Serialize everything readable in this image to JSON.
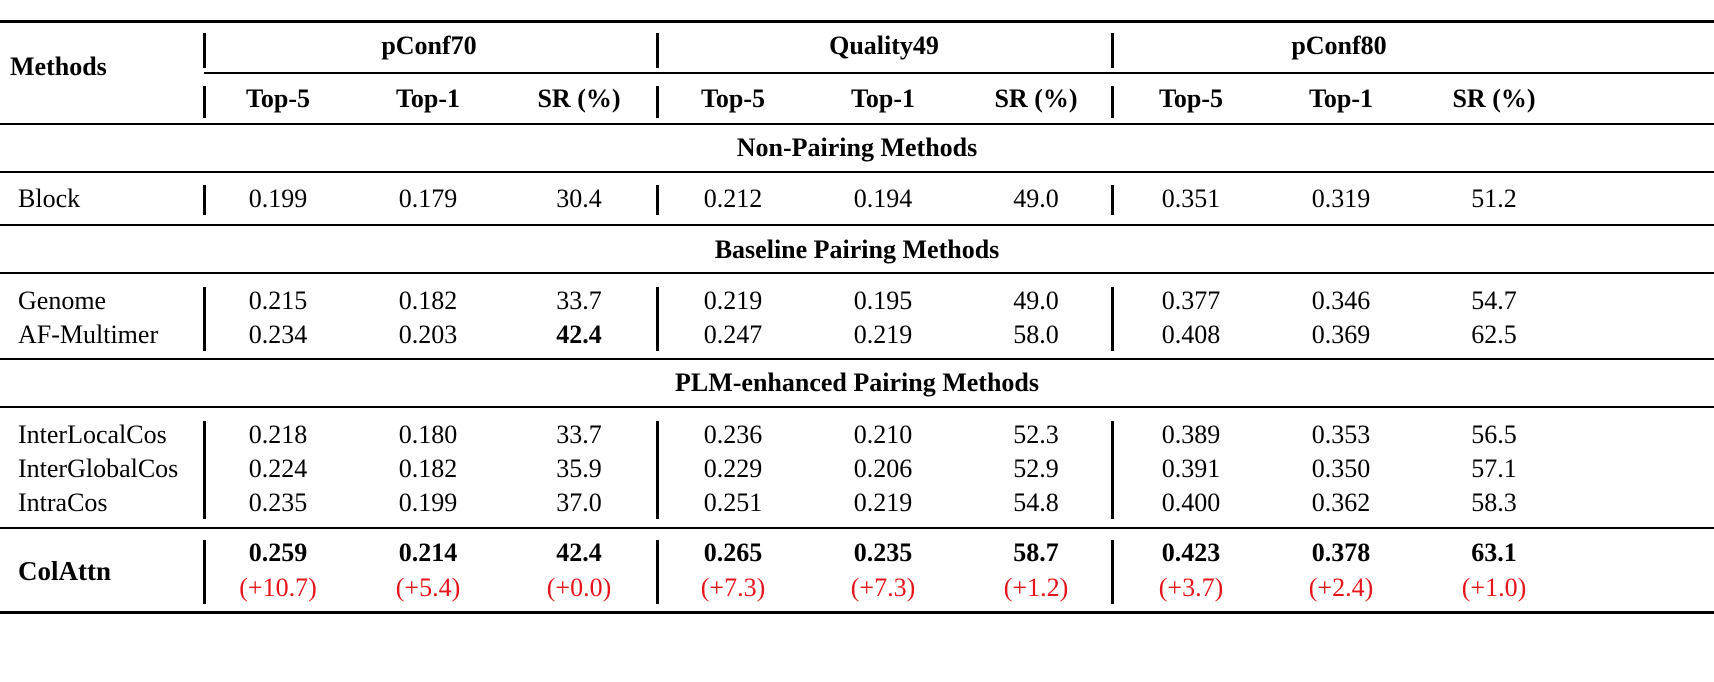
{
  "header": {
    "methods_label": "Methods",
    "datasets": [
      "pConf70",
      "Quality49",
      "pConf80"
    ],
    "metrics": [
      "Top-5",
      "Top-1",
      "SR (%)"
    ]
  },
  "sections": [
    {
      "title": "Non-Pairing Methods",
      "rows": [
        {
          "method": "Block",
          "values": [
            "0.199",
            "0.179",
            "30.4",
            "0.212",
            "0.194",
            "49.0",
            "0.351",
            "0.319",
            "51.2"
          ]
        }
      ]
    },
    {
      "title": "Baseline Pairing Methods",
      "rows": [
        {
          "method": "Genome",
          "values": [
            "0.215",
            "0.182",
            "33.7",
            "0.219",
            "0.195",
            "49.0",
            "0.377",
            "0.346",
            "54.7"
          ]
        },
        {
          "method": "AF-Multimer",
          "values": [
            "0.234",
            "0.203",
            "42.4",
            "0.247",
            "0.219",
            "58.0",
            "0.408",
            "0.369",
            "62.5"
          ]
        }
      ]
    },
    {
      "title": "PLM-enhanced Pairing Methods",
      "rows": [
        {
          "method": "InterLocalCos",
          "values": [
            "0.218",
            "0.180",
            "33.7",
            "0.236",
            "0.210",
            "52.3",
            "0.389",
            "0.353",
            "56.5"
          ]
        },
        {
          "method": "InterGlobalCos",
          "values": [
            "0.224",
            "0.182",
            "35.9",
            "0.229",
            "0.206",
            "52.9",
            "0.391",
            "0.350",
            "57.1"
          ]
        },
        {
          "method": "IntraCos",
          "values": [
            "0.235",
            "0.199",
            "37.0",
            "0.251",
            "0.219",
            "54.8",
            "0.400",
            "0.362",
            "58.3"
          ]
        }
      ]
    }
  ],
  "final": {
    "method": "ColAttn",
    "values": [
      "0.259",
      "0.214",
      "42.4",
      "0.265",
      "0.235",
      "58.7",
      "0.423",
      "0.378",
      "63.1"
    ],
    "deltas": [
      "(+10.7)",
      "(+5.4)",
      "(+0.0)",
      "(+7.3)",
      "(+7.3)",
      "(+1.2)",
      "(+3.7)",
      "(+2.4)",
      "(+1.0)"
    ]
  },
  "colors": {
    "delta": "#e8141b"
  }
}
